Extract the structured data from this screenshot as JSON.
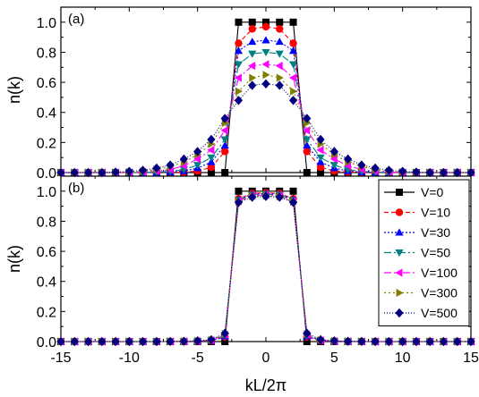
{
  "chart_data": [
    {
      "type": "line",
      "panel_label": "(a)",
      "xlabel": "kL/2π",
      "ylabel": "n(k)",
      "xlim": [
        -15,
        15
      ],
      "ylim": [
        0,
        1.1
      ],
      "xticks": [
        -15,
        -10,
        -5,
        0,
        5,
        10,
        15
      ],
      "yticks": [
        "0.0",
        "0.2",
        "0.4",
        "0.6",
        "0.8",
        "1.0"
      ],
      "x": [
        -15,
        -14,
        -13,
        -12,
        -11,
        -10,
        -9,
        -8,
        -7,
        -6,
        -5,
        -4,
        -3,
        -2,
        -1,
        0,
        1,
        2,
        3,
        4,
        5,
        6,
        7,
        8,
        9,
        10,
        11,
        12,
        13,
        14,
        15
      ],
      "series": [
        {
          "name": "V=0",
          "color": "#000000",
          "dash": "",
          "marker": "square",
          "values": [
            0,
            0,
            0,
            0,
            0,
            0,
            0,
            0,
            0,
            0,
            0,
            0,
            0,
            1,
            1,
            1,
            1,
            1,
            0,
            0,
            0,
            0,
            0,
            0,
            0,
            0,
            0,
            0,
            0,
            0,
            0
          ]
        },
        {
          "name": "V=10",
          "color": "#ff0000",
          "dash": "5,3",
          "marker": "circle",
          "values": [
            0,
            0,
            0,
            0,
            0,
            0,
            0,
            0,
            0,
            0.003,
            0.01,
            0.035,
            0.14,
            0.86,
            0.955,
            0.97,
            0.955,
            0.86,
            0.14,
            0.035,
            0.01,
            0.003,
            0,
            0,
            0,
            0,
            0,
            0,
            0,
            0,
            0
          ]
        },
        {
          "name": "V=30",
          "color": "#0000ff",
          "dash": "2,2",
          "marker": "triangle-up",
          "values": [
            0,
            0,
            0,
            0,
            0,
            0,
            0,
            0,
            0.003,
            0.01,
            0.03,
            0.07,
            0.18,
            0.81,
            0.87,
            0.88,
            0.87,
            0.81,
            0.18,
            0.07,
            0.03,
            0.01,
            0.003,
            0,
            0,
            0,
            0,
            0,
            0,
            0,
            0
          ]
        },
        {
          "name": "V=50",
          "color": "#008080",
          "dash": "8,3,2,3",
          "marker": "triangle-down",
          "values": [
            0,
            0,
            0,
            0,
            0,
            0,
            0,
            0.003,
            0.008,
            0.02,
            0.05,
            0.1,
            0.22,
            0.72,
            0.79,
            0.8,
            0.79,
            0.72,
            0.22,
            0.1,
            0.05,
            0.02,
            0.008,
            0.003,
            0,
            0,
            0,
            0,
            0,
            0,
            0
          ]
        },
        {
          "name": "V=100",
          "color": "#ff00ff",
          "dash": "8,3,2,3,2,3",
          "marker": "triangle-left",
          "values": [
            0,
            0,
            0,
            0,
            0,
            0,
            0.003,
            0.01,
            0.02,
            0.045,
            0.09,
            0.15,
            0.28,
            0.63,
            0.71,
            0.72,
            0.71,
            0.63,
            0.28,
            0.15,
            0.09,
            0.045,
            0.02,
            0.01,
            0.003,
            0,
            0,
            0,
            0,
            0,
            0
          ]
        },
        {
          "name": "V=300",
          "color": "#808000",
          "dash": "2,3",
          "marker": "triangle-right",
          "values": [
            0,
            0,
            0,
            0,
            0,
            0.003,
            0.008,
            0.02,
            0.04,
            0.07,
            0.12,
            0.19,
            0.33,
            0.54,
            0.63,
            0.65,
            0.63,
            0.54,
            0.33,
            0.19,
            0.12,
            0.07,
            0.04,
            0.02,
            0.008,
            0.003,
            0,
            0,
            0,
            0,
            0
          ]
        },
        {
          "name": "V=500",
          "color": "#000080",
          "dash": "1,2",
          "marker": "diamond",
          "values": [
            0,
            0,
            0,
            0,
            0.003,
            0.008,
            0.015,
            0.03,
            0.05,
            0.09,
            0.14,
            0.22,
            0.36,
            0.48,
            0.58,
            0.59,
            0.58,
            0.48,
            0.36,
            0.22,
            0.14,
            0.09,
            0.05,
            0.03,
            0.015,
            0.008,
            0.003,
            0,
            0,
            0,
            0
          ]
        }
      ]
    },
    {
      "type": "line",
      "panel_label": "(b)",
      "xlabel": "kL/2π",
      "ylabel": "n(k)",
      "xlim": [
        -15,
        15
      ],
      "ylim": [
        0,
        1.1
      ],
      "xticks": [
        -15,
        -10,
        -5,
        0,
        5,
        10,
        15
      ],
      "yticks": [
        "0.0",
        "0.2",
        "0.4",
        "0.6",
        "0.8",
        "1.0"
      ],
      "legend": "top-right",
      "x": [
        -15,
        -14,
        -13,
        -12,
        -11,
        -10,
        -9,
        -8,
        -7,
        -6,
        -5,
        -4,
        -3,
        -2,
        -1,
        0,
        1,
        2,
        3,
        4,
        5,
        6,
        7,
        8,
        9,
        10,
        11,
        12,
        13,
        14,
        15
      ],
      "series": [
        {
          "name": "V=0",
          "color": "#000000",
          "dash": "",
          "marker": "square",
          "values": [
            0,
            0,
            0,
            0,
            0,
            0,
            0,
            0,
            0,
            0,
            0,
            0,
            0,
            1,
            1,
            1,
            1,
            1,
            0,
            0,
            0,
            0,
            0,
            0,
            0,
            0,
            0,
            0,
            0,
            0,
            0
          ]
        },
        {
          "name": "V=10",
          "color": "#ff0000",
          "dash": "5,3",
          "marker": "circle",
          "values": [
            0,
            0,
            0,
            0,
            0,
            0,
            0,
            0,
            0,
            0,
            0.002,
            0.005,
            0.03,
            0.95,
            0.985,
            0.99,
            0.985,
            0.95,
            0.03,
            0.005,
            0.002,
            0,
            0,
            0,
            0,
            0,
            0,
            0,
            0,
            0,
            0
          ]
        },
        {
          "name": "V=30",
          "color": "#0000ff",
          "dash": "2,2",
          "marker": "triangle-up",
          "values": [
            0,
            0,
            0,
            0,
            0,
            0,
            0,
            0,
            0,
            0,
            0.002,
            0.006,
            0.035,
            0.945,
            0.98,
            0.985,
            0.98,
            0.945,
            0.035,
            0.006,
            0.002,
            0,
            0,
            0,
            0,
            0,
            0,
            0,
            0,
            0,
            0
          ]
        },
        {
          "name": "V=50",
          "color": "#008080",
          "dash": "8,3,2,3",
          "marker": "triangle-down",
          "values": [
            0,
            0,
            0,
            0,
            0,
            0,
            0,
            0,
            0,
            0.001,
            0.003,
            0.007,
            0.04,
            0.94,
            0.975,
            0.98,
            0.975,
            0.94,
            0.04,
            0.007,
            0.003,
            0.001,
            0,
            0,
            0,
            0,
            0,
            0,
            0,
            0,
            0
          ]
        },
        {
          "name": "V=100",
          "color": "#ff00ff",
          "dash": "8,3,2,3,2,3",
          "marker": "triangle-left",
          "values": [
            0,
            0,
            0,
            0,
            0,
            0,
            0,
            0,
            0,
            0.001,
            0.003,
            0.008,
            0.045,
            0.935,
            0.97,
            0.975,
            0.97,
            0.935,
            0.045,
            0.008,
            0.003,
            0.001,
            0,
            0,
            0,
            0,
            0,
            0,
            0,
            0,
            0
          ]
        },
        {
          "name": "V=300",
          "color": "#808000",
          "dash": "2,3",
          "marker": "triangle-right",
          "values": [
            0,
            0,
            0,
            0,
            0,
            0,
            0,
            0,
            0.001,
            0.002,
            0.004,
            0.01,
            0.05,
            0.93,
            0.965,
            0.97,
            0.965,
            0.93,
            0.05,
            0.01,
            0.004,
            0.002,
            0.001,
            0,
            0,
            0,
            0,
            0,
            0,
            0,
            0
          ]
        },
        {
          "name": "V=500",
          "color": "#000080",
          "dash": "1,2",
          "marker": "diamond",
          "values": [
            0,
            0,
            0,
            0,
            0,
            0,
            0,
            0,
            0.001,
            0.002,
            0.005,
            0.012,
            0.055,
            0.925,
            0.96,
            0.965,
            0.96,
            0.925,
            0.055,
            0.012,
            0.005,
            0.002,
            0.001,
            0,
            0,
            0,
            0,
            0,
            0,
            0,
            0
          ]
        }
      ]
    }
  ]
}
